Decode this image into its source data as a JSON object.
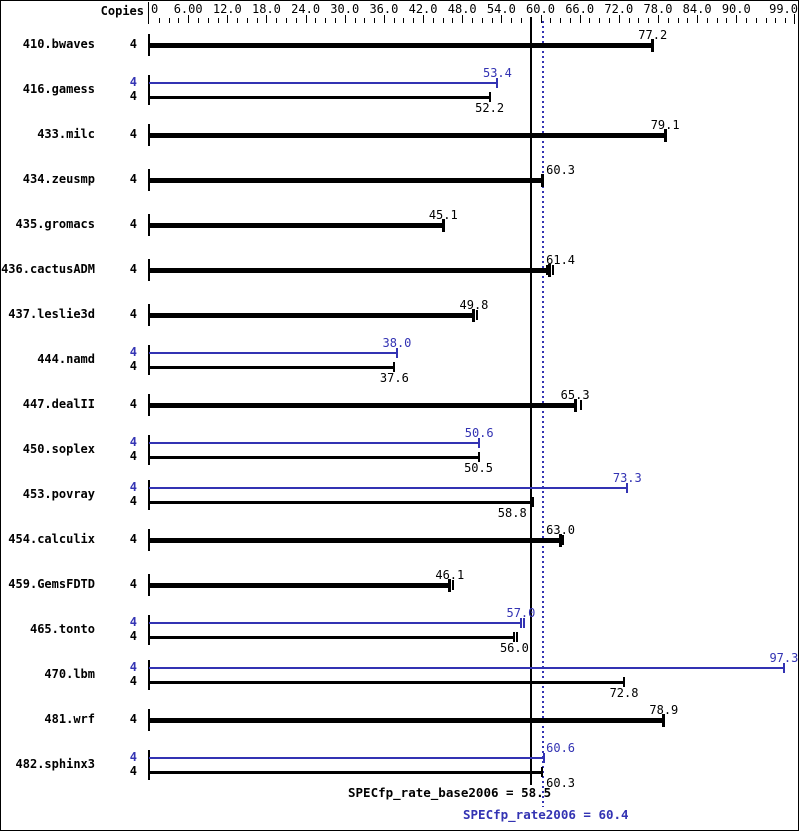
{
  "header": {
    "copies_label": "Copies"
  },
  "colors": {
    "base": "#000000",
    "peak": "#3333b3",
    "background": "#ffffff"
  },
  "footer": {
    "base_text": "SPECfp_rate_base2006 = 58.5",
    "peak_text": "SPECfp_rate2006 = 60.4"
  },
  "chart_data": {
    "type": "bar",
    "orientation": "horizontal",
    "xlim": [
      0,
      99
    ],
    "grid": false,
    "copies_header": "Copies",
    "axis_ticks": {
      "major_step": 6,
      "minor_step": 1.5,
      "label_values": [
        0,
        6,
        12,
        18,
        24,
        30,
        36,
        42,
        48,
        54,
        60,
        66,
        72,
        78,
        84,
        90,
        99
      ],
      "labels": [
        "0",
        "6.00",
        "12.0",
        "18.0",
        "24.0",
        "30.0",
        "36.0",
        "42.0",
        "48.0",
        "54.0",
        "60.0",
        "66.0",
        "72.0",
        "78.0",
        "84.0",
        "90.0",
        "99.0"
      ]
    },
    "series_colors": {
      "base": "#000000",
      "peak": "#3333b3"
    },
    "benchmarks": [
      {
        "name": "410.bwaves",
        "bars": [
          {
            "series": "base",
            "copies": 4,
            "value": 77.2,
            "thick": true
          }
        ]
      },
      {
        "name": "416.gamess",
        "bars": [
          {
            "series": "peak",
            "copies": 4,
            "value": 53.4
          },
          {
            "series": "base",
            "copies": 4,
            "value": 52.2
          }
        ]
      },
      {
        "name": "433.milc",
        "bars": [
          {
            "series": "base",
            "copies": 4,
            "value": 79.1,
            "thick": true
          }
        ]
      },
      {
        "name": "434.zeusmp",
        "bars": [
          {
            "series": "base",
            "copies": 4,
            "value": 60.3,
            "thick": true,
            "label_pos": "right-of-line"
          }
        ]
      },
      {
        "name": "435.gromacs",
        "bars": [
          {
            "series": "base",
            "copies": 4,
            "value": 45.1,
            "thick": true
          }
        ]
      },
      {
        "name": "436.cactusADM",
        "bars": [
          {
            "series": "base",
            "copies": 4,
            "value": 61.4,
            "thick": true,
            "extra_marks": [
              -3,
              3
            ],
            "label_pos": "right-of-line"
          }
        ]
      },
      {
        "name": "437.leslie3d",
        "bars": [
          {
            "series": "base",
            "copies": 4,
            "value": 49.8,
            "thick": true,
            "extra_marks": [
              3
            ]
          }
        ]
      },
      {
        "name": "444.namd",
        "bars": [
          {
            "series": "peak",
            "copies": 4,
            "value": 38.0
          },
          {
            "series": "base",
            "copies": 4,
            "value": 37.6
          }
        ]
      },
      {
        "name": "447.dealII",
        "bars": [
          {
            "series": "base",
            "copies": 4,
            "value": 65.3,
            "thick": true,
            "extra_marks": [
              6
            ]
          }
        ]
      },
      {
        "name": "450.soplex",
        "bars": [
          {
            "series": "peak",
            "copies": 4,
            "value": 50.6
          },
          {
            "series": "base",
            "copies": 4,
            "value": 50.5
          }
        ]
      },
      {
        "name": "453.povray",
        "bars": [
          {
            "series": "peak",
            "copies": 4,
            "value": 73.3
          },
          {
            "series": "base",
            "copies": 4,
            "value": 58.8,
            "label_pos": "left"
          }
        ]
      },
      {
        "name": "454.calculix",
        "bars": [
          {
            "series": "base",
            "copies": 4,
            "value": 63.0,
            "thick": true,
            "extra_marks": [
              3
            ],
            "label_pos": "right-of-line"
          }
        ]
      },
      {
        "name": "459.GemsFDTD",
        "bars": [
          {
            "series": "base",
            "copies": 4,
            "value": 46.1,
            "thick": true,
            "extra_marks": [
              3
            ]
          }
        ]
      },
      {
        "name": "465.tonto",
        "bars": [
          {
            "series": "peak",
            "copies": 4,
            "value": 57.0,
            "extra_marks": [
              3
            ]
          },
          {
            "series": "base",
            "copies": 4,
            "value": 56.0,
            "extra_marks": [
              3
            ]
          }
        ]
      },
      {
        "name": "470.lbm",
        "bars": [
          {
            "series": "peak",
            "copies": 4,
            "value": 97.3
          },
          {
            "series": "base",
            "copies": 4,
            "value": 72.8
          }
        ]
      },
      {
        "name": "481.wrf",
        "bars": [
          {
            "series": "base",
            "copies": 4,
            "value": 78.9,
            "thick": true
          }
        ]
      },
      {
        "name": "482.sphinx3",
        "bars": [
          {
            "series": "peak",
            "copies": 4,
            "value": 60.6,
            "label_pos": "right-of-line"
          },
          {
            "series": "base",
            "copies": 4,
            "value": 60.3,
            "label_pos": "right-of-line"
          }
        ]
      }
    ],
    "reference_lines": [
      {
        "name": "base_mean",
        "value": 58.5,
        "style": "solid",
        "color": "#000000",
        "label": "SPECfp_rate_base2006 = 58.5"
      },
      {
        "name": "peak_mean",
        "value": 60.4,
        "style": "dotted",
        "color": "#3333b3",
        "label": "SPECfp_rate2006 = 60.4"
      }
    ]
  }
}
